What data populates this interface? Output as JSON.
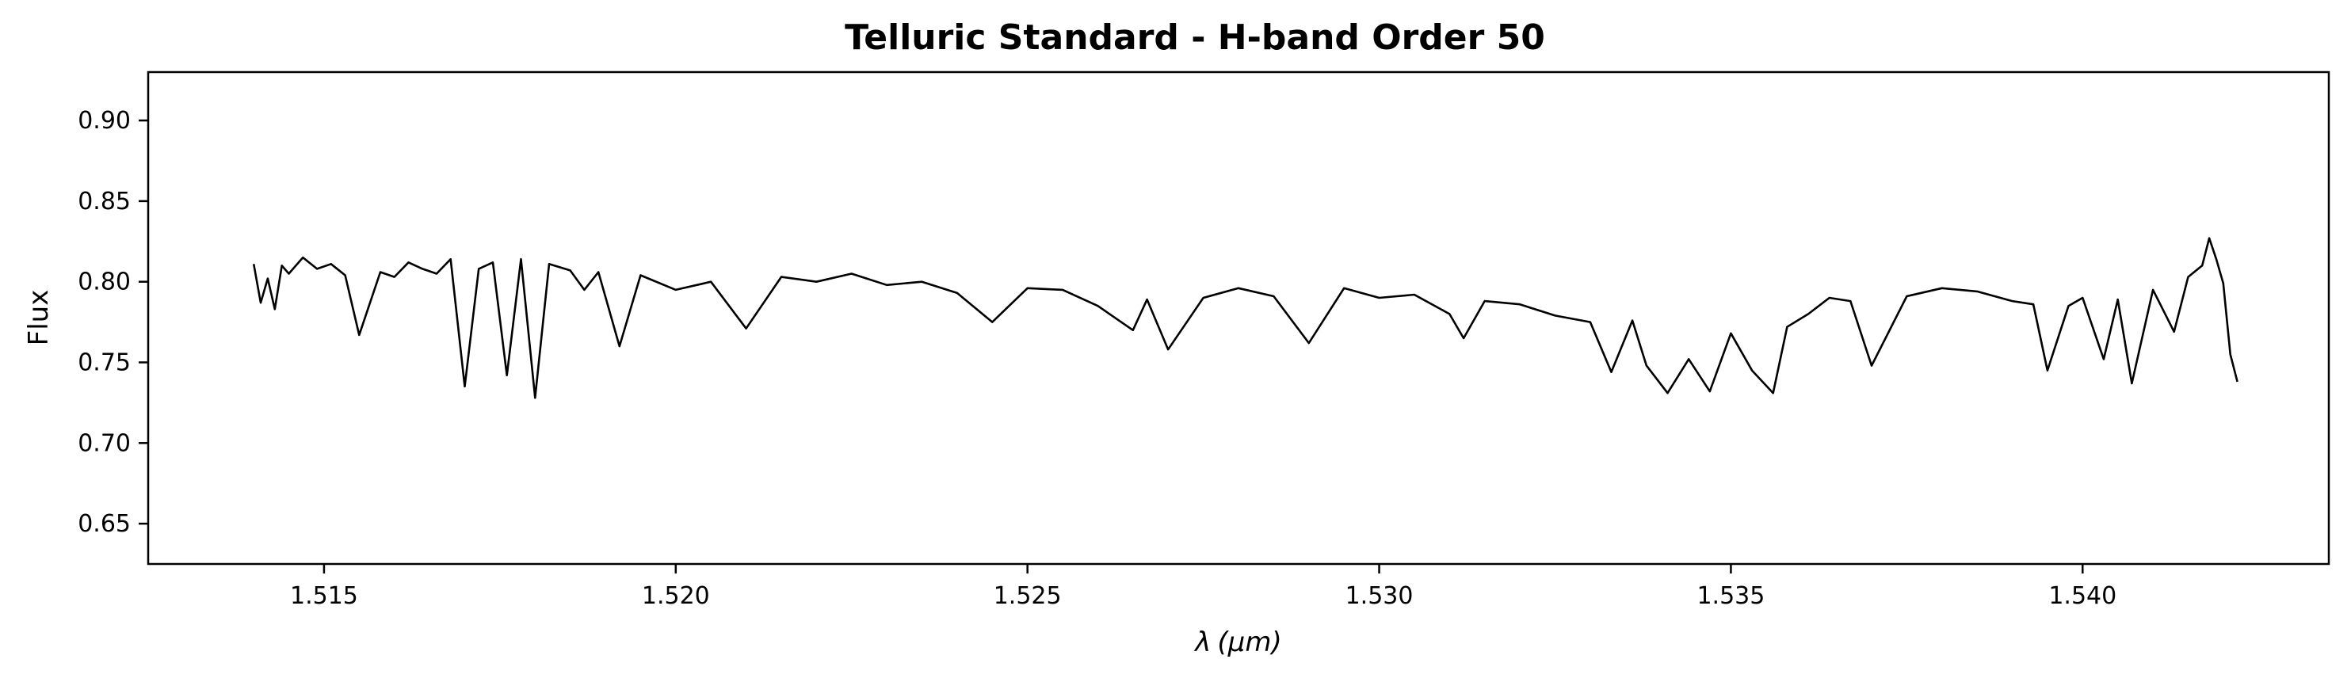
{
  "chart_data": {
    "type": "line",
    "title": "Telluric Standard - H-band Order 50",
    "xlabel_symbol": "λ",
    "xlabel_unit": "(μm)",
    "ylabel": "Flux",
    "xlim": [
      1.5125,
      1.5435
    ],
    "ylim": [
      0.625,
      0.93
    ],
    "x_ticks": [
      1.515,
      1.52,
      1.525,
      1.53,
      1.535,
      1.54
    ],
    "x_tick_labels": [
      "1.515",
      "1.520",
      "1.525",
      "1.530",
      "1.535",
      "1.540"
    ],
    "y_ticks": [
      0.65,
      0.7,
      0.75,
      0.8,
      0.85,
      0.9
    ],
    "y_tick_labels": [
      "0.65",
      "0.70",
      "0.75",
      "0.80",
      "0.85",
      "0.90"
    ],
    "grid": false,
    "line_color": "#000000",
    "series": [
      {
        "x": [
          1.514,
          1.5141,
          1.5142,
          1.5143,
          1.5144,
          1.5145,
          1.5147,
          1.5149,
          1.5151,
          1.5153,
          1.5155,
          1.5158,
          1.516,
          1.5162,
          1.5164,
          1.5166,
          1.5168,
          1.517,
          1.5172,
          1.5174,
          1.5176,
          1.5178,
          1.518,
          1.5182,
          1.5185,
          1.5187,
          1.5189,
          1.5192,
          1.5195,
          1.52,
          1.5205,
          1.521,
          1.5215,
          1.522,
          1.5225,
          1.523,
          1.5235,
          1.524,
          1.5245,
          1.525,
          1.5255,
          1.526,
          1.5265,
          1.5267,
          1.527,
          1.5275,
          1.528,
          1.5285,
          1.529,
          1.5295,
          1.53,
          1.5305,
          1.531,
          1.5312,
          1.5315,
          1.532,
          1.5325,
          1.533,
          1.5333,
          1.5336,
          1.5338,
          1.5341,
          1.5344,
          1.5347,
          1.535,
          1.5353,
          1.5356,
          1.5358,
          1.5361,
          1.5364,
          1.5367,
          1.537,
          1.5375,
          1.538,
          1.5385,
          1.539,
          1.5393,
          1.5395,
          1.5398,
          1.54,
          1.5403,
          1.5405,
          1.5407,
          1.541,
          1.5413,
          1.5415,
          1.5417,
          1.5418,
          1.5419,
          1.542,
          1.5421,
          1.5422
        ],
        "y": [
          0.811,
          0.787,
          0.802,
          0.783,
          0.81,
          0.805,
          0.815,
          0.808,
          0.811,
          0.804,
          0.767,
          0.806,
          0.803,
          0.812,
          0.808,
          0.805,
          0.814,
          0.735,
          0.808,
          0.812,
          0.742,
          0.814,
          0.728,
          0.811,
          0.807,
          0.795,
          0.806,
          0.76,
          0.804,
          0.795,
          0.8,
          0.771,
          0.803,
          0.8,
          0.805,
          0.798,
          0.8,
          0.793,
          0.775,
          0.796,
          0.795,
          0.785,
          0.77,
          0.789,
          0.758,
          0.79,
          0.796,
          0.791,
          0.762,
          0.796,
          0.79,
          0.792,
          0.78,
          0.765,
          0.788,
          0.786,
          0.779,
          0.775,
          0.744,
          0.776,
          0.748,
          0.731,
          0.752,
          0.732,
          0.768,
          0.745,
          0.731,
          0.772,
          0.78,
          0.79,
          0.788,
          0.748,
          0.791,
          0.796,
          0.794,
          0.788,
          0.786,
          0.745,
          0.785,
          0.79,
          0.752,
          0.789,
          0.737,
          0.795,
          0.769,
          0.803,
          0.81,
          0.827,
          0.814,
          0.799,
          0.755,
          0.738
        ]
      }
    ]
  }
}
